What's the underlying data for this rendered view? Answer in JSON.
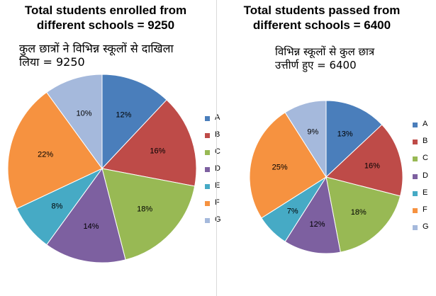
{
  "chart_data": [
    {
      "type": "pie",
      "title": "Total students enrolled from different schools = 9250",
      "title_lines": [
        "Total students enrolled from",
        "different schools = 9250"
      ],
      "subtitle_lines": [
        "कुल छात्रों ने विभिन्न स्कूलों से दाखिला",
        "लिया = 9250"
      ],
      "categories": [
        "A",
        "B",
        "C",
        "D",
        "E",
        "F",
        "G"
      ],
      "values": [
        12,
        16,
        18,
        14,
        8,
        22,
        10
      ],
      "labels": [
        "12%",
        "16%",
        "18%",
        "14%",
        "8%",
        "22%",
        "10%"
      ],
      "colors": [
        "#4a7ebb",
        "#be4b48",
        "#98b954",
        "#7d60a0",
        "#46aac5",
        "#f69240",
        "#a5b9dc"
      ],
      "legend_position": "right"
    },
    {
      "type": "pie",
      "title": "Total students passed from different schools = 6400",
      "title_lines": [
        "Total students passed from",
        "different schools = 6400"
      ],
      "subtitle_lines": [
        "विभिन्न स्कूलों से कुल छात्र",
        "उत्तीर्ण हुए = 6400"
      ],
      "categories": [
        "A",
        "B",
        "C",
        "D",
        "E",
        "F",
        "G"
      ],
      "values": [
        13,
        16,
        18,
        12,
        7,
        25,
        9
      ],
      "labels": [
        "13%",
        "16%",
        "18%",
        "12%",
        "7%",
        "25%",
        "9%"
      ],
      "colors": [
        "#4a7ebb",
        "#be4b48",
        "#98b954",
        "#7d60a0",
        "#46aac5",
        "#f69240",
        "#a5b9dc"
      ],
      "legend_position": "right"
    }
  ]
}
